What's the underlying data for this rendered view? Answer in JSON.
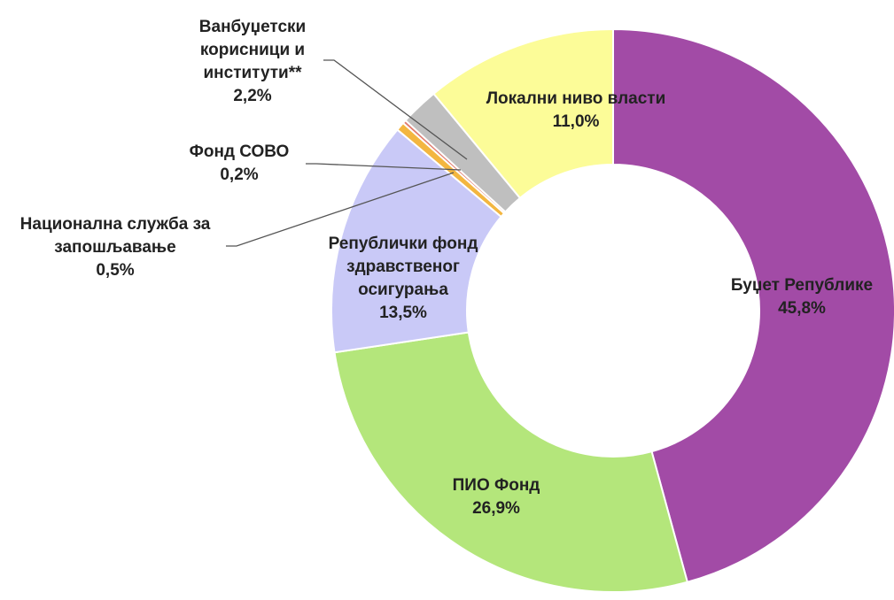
{
  "chart_data": {
    "type": "pie",
    "categories": [
      "Буџет Републике",
      "ПИО Фонд",
      "Републички фонд здравственог осигурања",
      "Национална служба за запошљавање",
      "Фонд СОВО",
      "Ванбуџетски корисници и институти**",
      "Локални ниво власти"
    ],
    "values": [
      45.8,
      26.9,
      13.5,
      0.5,
      0.2,
      2.2,
      11.0
    ],
    "value_labels": [
      "45,8%",
      "26,9%",
      "13,5%",
      "0,5%",
      "0,2%",
      "2,2%",
      "11,0%"
    ],
    "colors": [
      "#a24ba6",
      "#b4e67b",
      "#c9c9f7",
      "#f3b640",
      "#e07a6e",
      "#bfbfbf",
      "#fcfc98"
    ]
  }
}
